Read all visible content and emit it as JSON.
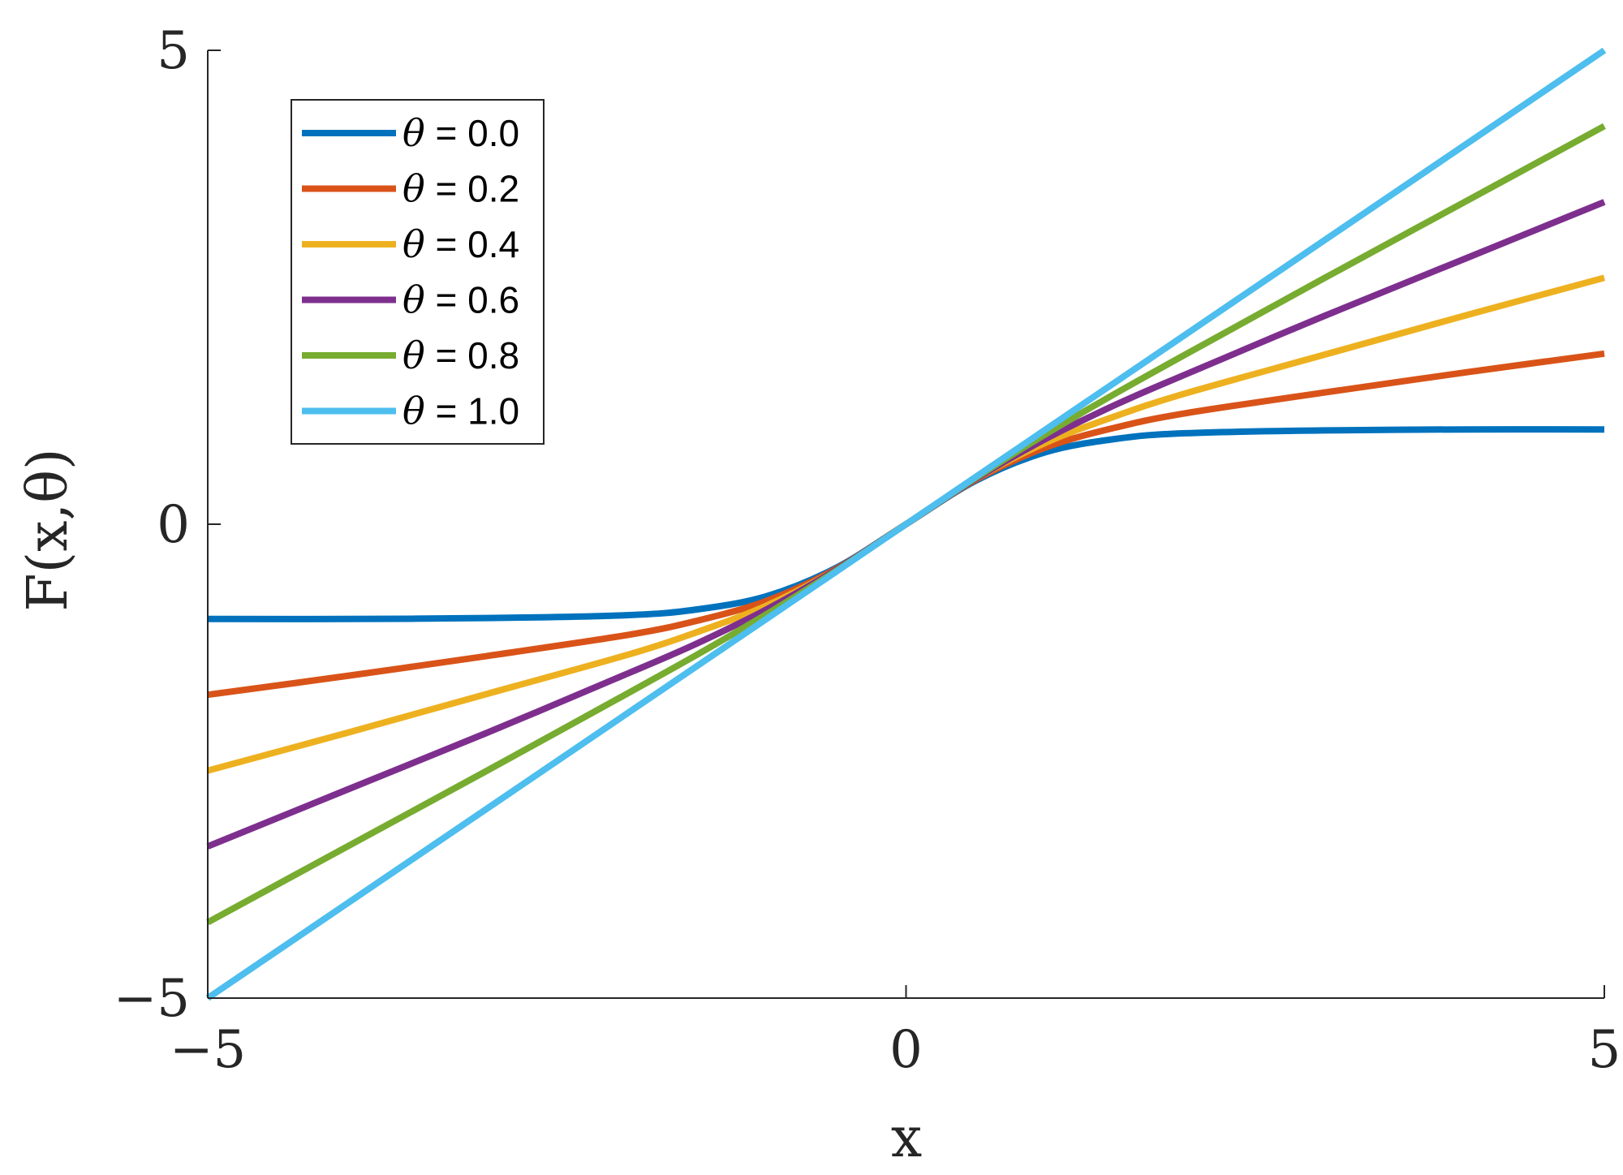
{
  "chart_data": {
    "type": "line",
    "xlabel": "x",
    "ylabel": "F(x,θ)",
    "xlim": [
      -5,
      5
    ],
    "ylim": [
      -5,
      5
    ],
    "xticks": [
      {
        "value": -5,
        "label": "−5"
      },
      {
        "value": 0,
        "label": "0"
      },
      {
        "value": 5,
        "label": "5"
      }
    ],
    "yticks": [
      {
        "value": -5,
        "label": "−5"
      },
      {
        "value": 0,
        "label": "0"
      },
      {
        "value": 5,
        "label": "5"
      }
    ],
    "grid": false,
    "legend_placement": "top-left",
    "x": [
      -5,
      -4,
      -3,
      -2,
      -1.5,
      -1,
      -0.5,
      0,
      0.5,
      1,
      1.5,
      2,
      3,
      4,
      5
    ],
    "series": [
      {
        "name": "θ = 0.0",
        "symbol": "θ",
        "value_text": " = 0.0",
        "color": "#0072BD",
        "values": [
          -1.0,
          -1.0,
          -0.99,
          -0.96,
          -0.9,
          -0.76,
          -0.46,
          0,
          0.46,
          0.76,
          0.9,
          0.96,
          0.99,
          1.0,
          1.0
        ]
      },
      {
        "name": "θ = 0.2",
        "symbol": "θ",
        "value_text": " = 0.2",
        "color": "#D95319",
        "values": [
          -1.8,
          -1.6,
          -1.39,
          -1.17,
          -1.02,
          -0.81,
          -0.47,
          0,
          0.47,
          0.81,
          1.02,
          1.17,
          1.39,
          1.6,
          1.8
        ]
      },
      {
        "name": "θ = 0.4",
        "symbol": "θ",
        "value_text": " = 0.4",
        "color": "#EDB120",
        "values": [
          -2.6,
          -2.2,
          -1.79,
          -1.38,
          -1.14,
          -0.86,
          -0.48,
          0,
          0.48,
          0.86,
          1.14,
          1.38,
          1.79,
          2.2,
          2.6
        ]
      },
      {
        "name": "θ = 0.6",
        "symbol": "θ",
        "value_text": " = 0.6",
        "color": "#7E2F8E",
        "values": [
          -3.4,
          -2.8,
          -2.2,
          -1.58,
          -1.26,
          -0.9,
          -0.48,
          0,
          0.48,
          0.9,
          1.26,
          1.58,
          2.2,
          2.8,
          3.4
        ]
      },
      {
        "name": "θ = 0.8",
        "symbol": "θ",
        "value_text": " = 0.8",
        "color": "#77AC30",
        "values": [
          -4.2,
          -3.4,
          -2.6,
          -1.79,
          -1.38,
          -0.95,
          -0.49,
          0,
          0.49,
          0.95,
          1.38,
          1.79,
          2.6,
          3.4,
          4.2
        ]
      },
      {
        "name": "θ = 1.0",
        "symbol": "θ",
        "value_text": " = 1.0",
        "color": "#4DBEEE",
        "values": [
          -5,
          -4,
          -3,
          -2,
          -1.5,
          -1,
          -0.5,
          0,
          0.5,
          1,
          1.5,
          2,
          3,
          4,
          5
        ]
      }
    ]
  }
}
